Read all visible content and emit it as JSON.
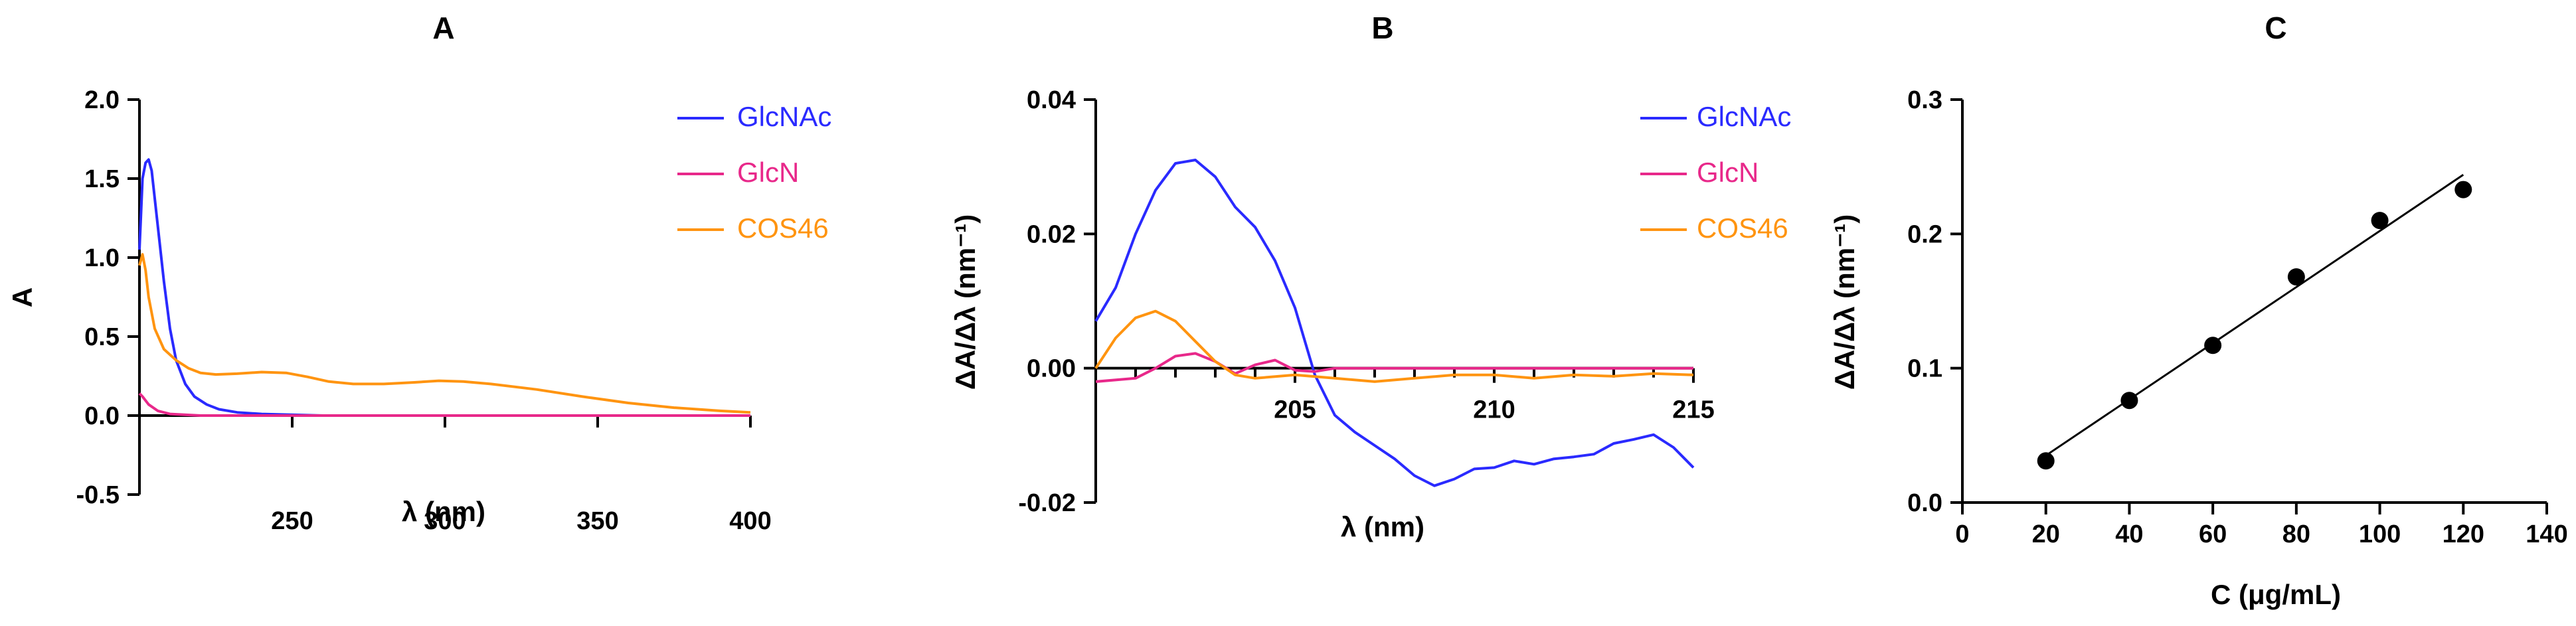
{
  "chart_data": [
    {
      "panel": "A",
      "type": "line",
      "title": "A",
      "xlabel": "λ (nm)",
      "ylabel": "A",
      "xlim": [
        200,
        400
      ],
      "ylim": [
        -0.5,
        2.0
      ],
      "xticks": [
        250,
        300,
        350,
        400
      ],
      "xtick_labels": [
        "250",
        "300",
        "350",
        "400"
      ],
      "yticks": [
        -0.5,
        0.0,
        0.5,
        1.0,
        1.5,
        2.0
      ],
      "ytick_labels": [
        "-0.5",
        "0.0",
        "0.5",
        "1.0",
        "1.5",
        "2.0"
      ],
      "legend": "top-right",
      "series": [
        {
          "name": "GlcNAc",
          "color": "#2a2aff",
          "x": [
            200,
            201,
            202,
            203,
            204,
            206,
            208,
            210,
            212,
            215,
            218,
            222,
            226,
            232,
            240,
            260,
            300,
            350,
            400
          ],
          "y": [
            1.05,
            1.5,
            1.6,
            1.62,
            1.55,
            1.2,
            0.85,
            0.55,
            0.35,
            0.2,
            0.12,
            0.07,
            0.04,
            0.02,
            0.01,
            0.0,
            0.0,
            0.0,
            0.0
          ]
        },
        {
          "name": "GlcN",
          "color": "#e8288a",
          "x": [
            200,
            201,
            203,
            206,
            210,
            220,
            250,
            300,
            400
          ],
          "y": [
            0.14,
            0.12,
            0.07,
            0.03,
            0.01,
            0.0,
            0.0,
            0.0,
            0.0
          ]
        },
        {
          "name": "COS46",
          "color": "#ff9410",
          "x": [
            200,
            201,
            202,
            203,
            205,
            208,
            212,
            216,
            220,
            225,
            232,
            240,
            248,
            255,
            262,
            270,
            280,
            290,
            298,
            306,
            315,
            330,
            345,
            360,
            375,
            390,
            400
          ],
          "y": [
            0.95,
            1.02,
            0.92,
            0.75,
            0.55,
            0.42,
            0.35,
            0.3,
            0.27,
            0.26,
            0.265,
            0.275,
            0.27,
            0.245,
            0.215,
            0.2,
            0.2,
            0.21,
            0.22,
            0.215,
            0.2,
            0.165,
            0.12,
            0.08,
            0.05,
            0.03,
            0.02
          ]
        }
      ]
    },
    {
      "panel": "B",
      "type": "line",
      "title": "B",
      "xlabel": "λ (nm)",
      "ylabel": "ΔA/Δλ (nm⁻¹)",
      "xlim": [
        200,
        215
      ],
      "ylim": [
        -0.02,
        0.04
      ],
      "xticks": [
        205,
        210,
        215
      ],
      "xtick_labels": [
        "205",
        "210",
        "215"
      ],
      "yticks": [
        -0.02,
        0.0,
        0.02,
        0.04
      ],
      "ytick_labels": [
        "-0.02",
        "0.00",
        "0.02",
        "0.04"
      ],
      "legend": "top-right",
      "series": [
        {
          "name": "GlcNAc",
          "color": "#2a2aff",
          "x": [
            200,
            200.5,
            201,
            201.5,
            202,
            202.5,
            203,
            203.5,
            204,
            204.5,
            205,
            205.5,
            206,
            206.5,
            207,
            207.5,
            208,
            208.5,
            209,
            209.5,
            210,
            210.5,
            211,
            211.5,
            212,
            212.5,
            213,
            213.5,
            214,
            214.5,
            215
          ],
          "y": [
            0.007,
            0.012,
            0.02,
            0.0265,
            0.0305,
            0.031,
            0.0285,
            0.024,
            0.021,
            0.016,
            0.009,
            -0.001,
            -0.007,
            -0.0095,
            -0.0115,
            -0.0135,
            -0.016,
            -0.0175,
            -0.0165,
            -0.015,
            -0.0148,
            -0.0138,
            -0.0143,
            -0.0135,
            -0.0132,
            -0.0128,
            -0.0112,
            -0.0106,
            -0.0099,
            -0.0118,
            -0.0148
          ]
        },
        {
          "name": "GlcN",
          "color": "#e8288a",
          "x": [
            200,
            201,
            201.5,
            202,
            202.5,
            203,
            203.5,
            204,
            204.5,
            205,
            205.5,
            206,
            207,
            208,
            210,
            212,
            214,
            215
          ],
          "y": [
            -0.002,
            -0.0015,
            0.0,
            0.0018,
            0.0022,
            0.001,
            -0.0008,
            0.0005,
            0.0012,
            -0.0003,
            -0.0005,
            0.0,
            0.0,
            0.0,
            0.0,
            0.0,
            0.0,
            0.0
          ]
        },
        {
          "name": "COS46",
          "color": "#ff9410",
          "x": [
            200,
            200.5,
            201,
            201.5,
            202,
            202.5,
            203,
            203.5,
            204,
            205,
            206,
            207,
            208,
            209,
            210,
            211,
            212,
            213,
            214,
            215
          ],
          "y": [
            0.0,
            0.0045,
            0.0075,
            0.0085,
            0.007,
            0.004,
            0.001,
            -0.001,
            -0.0015,
            -0.001,
            -0.0015,
            -0.002,
            -0.0015,
            -0.001,
            -0.001,
            -0.0015,
            -0.001,
            -0.0012,
            -0.0008,
            -0.001
          ]
        }
      ]
    },
    {
      "panel": "C",
      "type": "scatter",
      "title": "C",
      "xlabel": "C (μg/mL)",
      "ylabel": "ΔA/Δλ (nm⁻¹)",
      "xlim": [
        0,
        140
      ],
      "ylim": [
        0.0,
        0.3
      ],
      "xticks": [
        0,
        20,
        40,
        60,
        80,
        100,
        120,
        140
      ],
      "xtick_labels": [
        "0",
        "20",
        "40",
        "60",
        "80",
        "100",
        "120",
        "140"
      ],
      "yticks": [
        0.0,
        0.1,
        0.2,
        0.3
      ],
      "ytick_labels": [
        "0.0",
        "0.1",
        "0.2",
        "0.3"
      ],
      "points": {
        "x": [
          20,
          40,
          60,
          80,
          100,
          120
        ],
        "y": [
          0.031,
          0.076,
          0.117,
          0.168,
          0.21,
          0.233
        ]
      },
      "fit_line": {
        "x": [
          20,
          120
        ],
        "y": [
          0.035,
          0.244
        ]
      }
    }
  ]
}
